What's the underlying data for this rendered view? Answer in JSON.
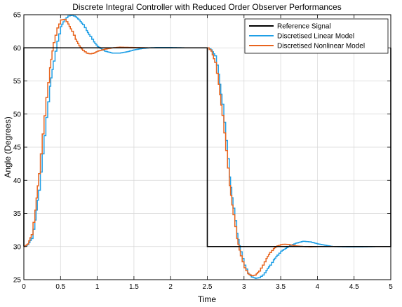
{
  "chart_data": {
    "type": "line",
    "title": "Discrete Integral Controller with Reduced Order Observer Performances",
    "xlabel": "Time",
    "ylabel": "Angle (Degrees)",
    "xlim": [
      0,
      5
    ],
    "ylim": [
      25,
      65
    ],
    "xticks": [
      0,
      0.5,
      1,
      1.5,
      2,
      2.5,
      3,
      3.5,
      4,
      4.5,
      5
    ],
    "xtick_labels": [
      "0",
      "0.5",
      "1",
      "1.5",
      "2",
      "2.5",
      "3",
      "3.5",
      "4",
      "4.5",
      "5"
    ],
    "yticks": [
      25,
      30,
      35,
      40,
      45,
      50,
      55,
      60,
      65
    ],
    "ytick_labels": [
      "25",
      "30",
      "35",
      "40",
      "45",
      "50",
      "55",
      "60",
      "65"
    ],
    "grid": true,
    "legend_position": "top-right",
    "series": [
      {
        "name": "Reference Signal",
        "color": "#000000",
        "style": "line",
        "x": [
          0,
          0,
          2.5,
          2.5,
          5,
          5
        ],
        "y": [
          30,
          60,
          60,
          30,
          30,
          60
        ]
      },
      {
        "name": "Discretised Linear Model",
        "color": "#1f9fe6",
        "style": "step",
        "x": [
          0,
          0.05,
          0.1,
          0.15,
          0.2,
          0.25,
          0.3,
          0.35,
          0.4,
          0.45,
          0.5,
          0.55,
          0.6,
          0.65,
          0.7,
          0.75,
          0.8,
          0.85,
          0.9,
          0.95,
          1.0,
          1.1,
          1.2,
          1.3,
          1.4,
          1.5,
          1.6,
          1.7,
          1.8,
          2.0,
          2.2,
          2.4,
          2.5,
          2.55,
          2.6,
          2.65,
          2.7,
          2.75,
          2.8,
          2.85,
          2.9,
          2.95,
          3.0,
          3.05,
          3.1,
          3.15,
          3.2,
          3.25,
          3.3,
          3.35,
          3.4,
          3.45,
          3.5,
          3.6,
          3.7,
          3.8,
          3.9,
          4.0,
          4.1,
          4.2,
          4.4,
          4.6,
          4.8,
          5.0
        ],
        "y": [
          30,
          30.3,
          31.2,
          34,
          38.5,
          44,
          49.5,
          54.2,
          58,
          61,
          63.2,
          64.3,
          64.8,
          64.9,
          64.7,
          64.2,
          63.5,
          62.6,
          61.7,
          60.9,
          60.2,
          59.5,
          59.2,
          59.2,
          59.4,
          59.7,
          59.9,
          60,
          60.05,
          60.05,
          60,
          60,
          60,
          59.7,
          58.8,
          56,
          51.5,
          46,
          40.5,
          35.8,
          32,
          29.2,
          27.2,
          26,
          25.4,
          25.2,
          25.3,
          25.7,
          26.4,
          27.2,
          28,
          28.7,
          29.3,
          30,
          30.5,
          30.8,
          30.7,
          30.4,
          30.2,
          30,
          29.95,
          29.95,
          30,
          30
        ]
      },
      {
        "name": "Discretised Nonlinear Model",
        "color": "#e8641e",
        "style": "step",
        "x": [
          0,
          0.05,
          0.1,
          0.15,
          0.2,
          0.25,
          0.3,
          0.35,
          0.4,
          0.45,
          0.5,
          0.55,
          0.6,
          0.65,
          0.7,
          0.75,
          0.8,
          0.85,
          0.9,
          0.95,
          1.0,
          1.1,
          1.2,
          1.3,
          1.5,
          1.7,
          2.0,
          2.4,
          2.5,
          2.55,
          2.6,
          2.65,
          2.7,
          2.75,
          2.8,
          2.85,
          2.9,
          2.95,
          3.0,
          3.05,
          3.1,
          3.15,
          3.2,
          3.25,
          3.3,
          3.35,
          3.4,
          3.45,
          3.5,
          3.55,
          3.6,
          3.7,
          3.8,
          3.9,
          4.0,
          4.5,
          5.0
        ],
        "y": [
          30,
          30.4,
          31.8,
          35.5,
          41,
          47,
          52.5,
          57,
          60.8,
          63,
          64.2,
          64.3,
          63.6,
          62.5,
          61.3,
          60.3,
          59.6,
          59.2,
          59.1,
          59.2,
          59.5,
          59.8,
          60,
          60.1,
          60.05,
          60,
          60,
          60,
          60,
          59.5,
          57.8,
          54.5,
          49.8,
          44.5,
          39.2,
          34.8,
          31.2,
          28.6,
          26.8,
          25.9,
          25.6,
          25.7,
          26.3,
          27.2,
          28.2,
          29.1,
          29.7,
          30.1,
          30.3,
          30.35,
          30.3,
          30.1,
          30,
          29.95,
          30,
          30,
          30
        ]
      }
    ]
  }
}
